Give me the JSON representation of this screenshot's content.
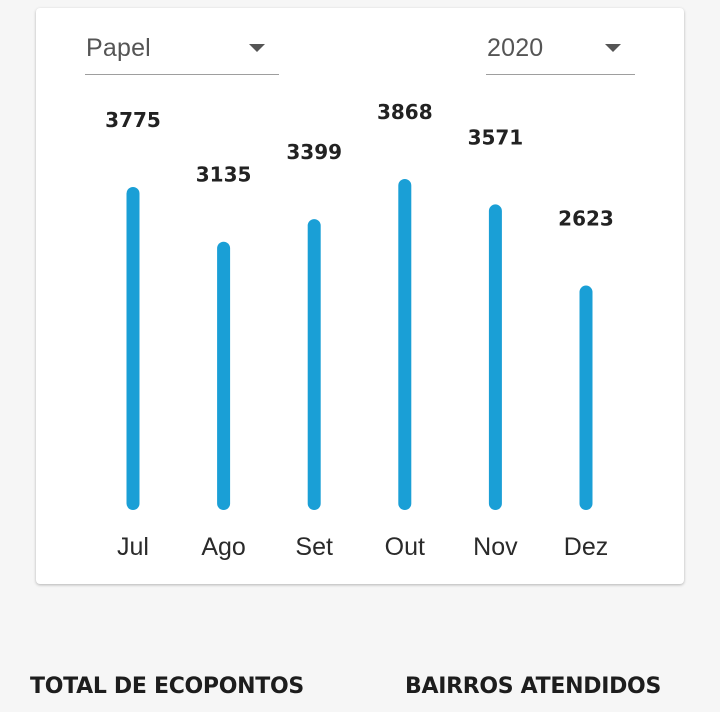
{
  "filters": {
    "material": "Papel",
    "year": "2020"
  },
  "chart_data": {
    "type": "bar",
    "categories": [
      "Jul",
      "Ago",
      "Set",
      "Out",
      "Nov",
      "Dez"
    ],
    "values": [
      3775,
      3135,
      3399,
      3868,
      3571,
      2623
    ],
    "bar_color": "#1a9fd6",
    "title": "",
    "xlabel": "",
    "ylabel": "",
    "ylim": [
      0,
      3868
    ],
    "grid": false
  },
  "stats": {
    "total_title": "TOTAL DE ECOPONTOS",
    "bairros_title": "BAIRROS ATENDIDOS"
  }
}
